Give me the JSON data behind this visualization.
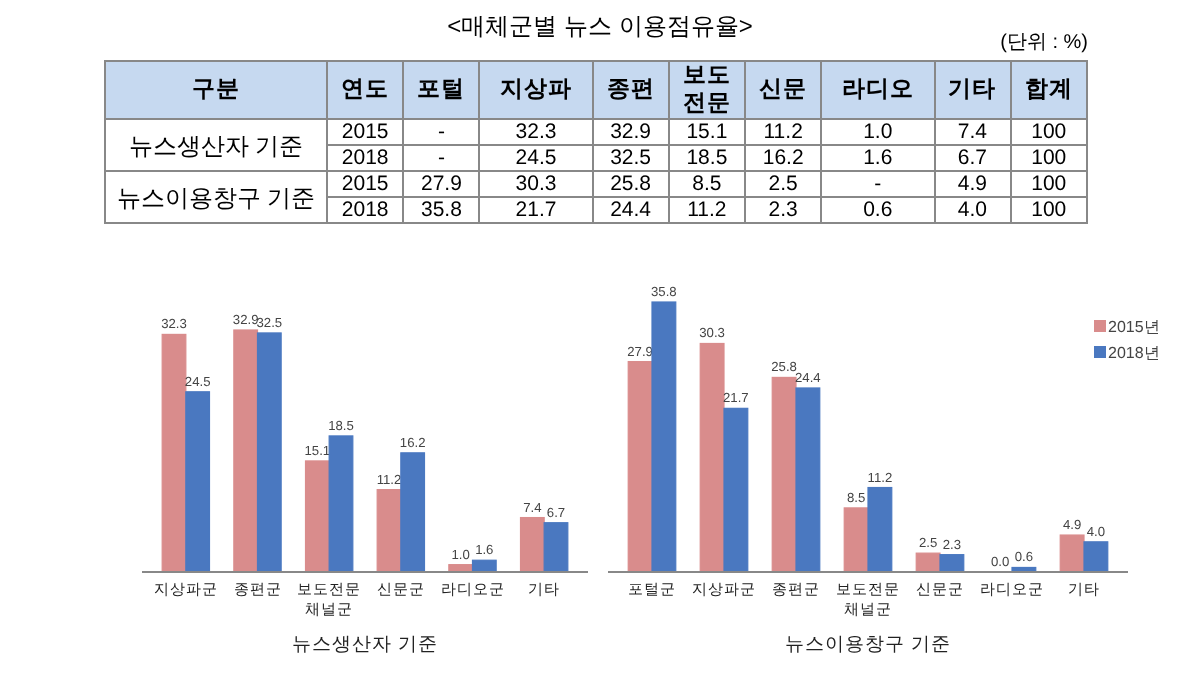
{
  "chart_data": [
    {
      "type": "heatmap",
      "title": "<매체군별 뉴스 이용점유율>",
      "subtitle": "(단위 : %)",
      "categories": [
        "포털",
        "지상파",
        "종편",
        "보도 전문",
        "신문",
        "라디오",
        "기타",
        "합계"
      ],
      "y_categories": [
        "2015",
        "2018",
        "2015",
        "2018"
      ],
      "annotations": [
        "구분",
        "연도",
        "뉴스생산자 기준",
        "뉴스이용창구 기준"
      ],
      "cells": [
        [
          null,
          32.3,
          32.9,
          15.1,
          11.2,
          1.0,
          7.4,
          100
        ],
        [
          null,
          24.5,
          32.5,
          18.5,
          16.2,
          1.6,
          6.7,
          100
        ],
        [
          27.9,
          30.3,
          25.8,
          8.5,
          2.5,
          null,
          4.9,
          100
        ],
        [
          35.8,
          21.7,
          24.4,
          11.2,
          2.3,
          0.6,
          4.0,
          100
        ]
      ],
      "cell_labels": [
        [
          "-",
          "32.3",
          "32.9",
          "15.1",
          "11.2",
          "1.0",
          "7.4",
          "100"
        ],
        [
          "-",
          "24.5",
          "32.5",
          "18.5",
          "16.2",
          "1.6",
          "6.7",
          "100"
        ],
        [
          "27.9",
          "30.3",
          "25.8",
          "8.5",
          "2.5",
          "-",
          "4.9",
          "100"
        ],
        [
          "35.8",
          "21.7",
          "24.4",
          "11.2",
          "2.3",
          "0.6",
          "4.0",
          "100"
        ]
      ]
    },
    {
      "type": "bar",
      "xlabel": "뉴스생산자 기준",
      "categories": [
        "지상파군",
        "종편군",
        "보도전문 채널군",
        "신문군",
        "라디오군",
        "기타"
      ],
      "legend": false,
      "series": [
        {
          "color": "#d98c8c",
          "values": [
            32.3,
            32.9,
            15.1,
            11.2,
            1.0,
            7.4
          ],
          "value_labels": [
            "32.3",
            "32.9",
            "15.1",
            "11.2",
            "1.0",
            "7.4"
          ]
        },
        {
          "color": "#4a78c0",
          "values": [
            24.5,
            32.5,
            18.5,
            16.2,
            1.6,
            6.7
          ],
          "value_labels": [
            "24.5",
            "32.5",
            "18.5",
            "16.2",
            "1.6",
            "6.7"
          ]
        }
      ]
    },
    {
      "type": "bar",
      "xlabel": "뉴스이용창구 기준",
      "categories": [
        "포털군",
        "지상파군",
        "종편군",
        "보도전문 채널군",
        "신문군",
        "라디오군",
        "기타"
      ],
      "legend": "top right",
      "series": [
        {
          "name": "2015년",
          "color": "#d98c8c",
          "values": [
            27.9,
            30.3,
            25.8,
            8.5,
            2.5,
            0.0,
            4.9
          ],
          "value_labels": [
            "27.9",
            "30.3",
            "25.8",
            "8.5",
            "2.5",
            "0.0",
            "4.9"
          ]
        },
        {
          "name": "2018년",
          "color": "#4a78c0",
          "values": [
            35.8,
            21.7,
            24.4,
            11.2,
            2.3,
            0.6,
            4.0
          ],
          "value_labels": [
            "35.8",
            "21.7",
            "24.4",
            "11.2",
            "2.3",
            "0.6",
            "4.0"
          ]
        }
      ]
    }
  ]
}
